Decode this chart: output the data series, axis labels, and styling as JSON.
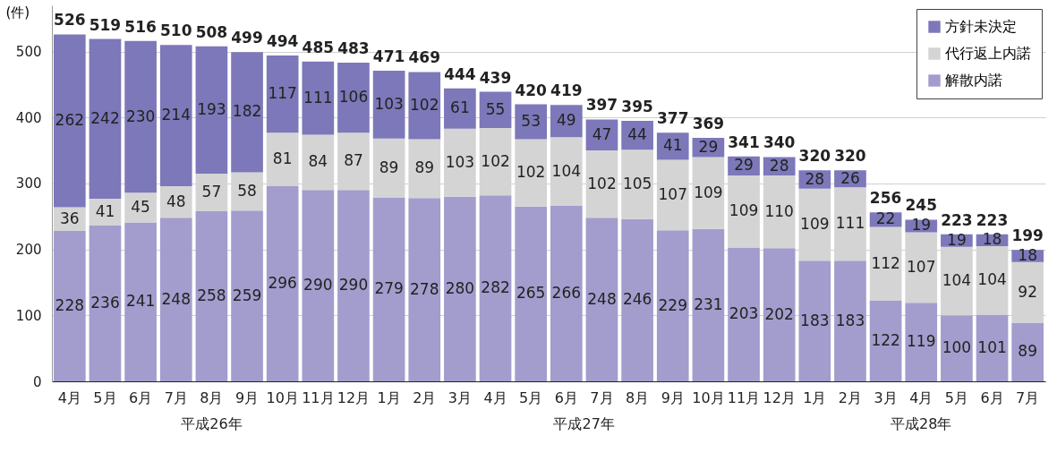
{
  "chart_data": {
    "type": "bar",
    "stacked": true,
    "ylabel": "(件)",
    "ylim": [
      0,
      570
    ],
    "yticks": [
      0,
      100,
      200,
      300,
      400,
      500
    ],
    "grid": "y",
    "legend": "top right",
    "data_labels": true,
    "categories": [
      "4月",
      "5月",
      "6月",
      "7月",
      "8月",
      "9月",
      "10月",
      "11月",
      "12月",
      "1月",
      "2月",
      "3月",
      "4月",
      "5月",
      "6月",
      "7月",
      "8月",
      "9月",
      "10月",
      "11月",
      "12月",
      "1月",
      "2月",
      "3月",
      "4月",
      "5月",
      "6月",
      "7月"
    ],
    "series": [
      {
        "name": "解散内諾",
        "color": "#a29dcd",
        "values": [
          228,
          236,
          241,
          248,
          258,
          259,
          296,
          290,
          290,
          279,
          278,
          280,
          282,
          265,
          266,
          248,
          246,
          229,
          231,
          203,
          202,
          183,
          183,
          122,
          119,
          100,
          101,
          89
        ]
      },
      {
        "name": "代行返上内諾",
        "color": "#d4d4d4",
        "values": [
          36,
          41,
          45,
          48,
          57,
          58,
          81,
          84,
          87,
          89,
          89,
          103,
          102,
          102,
          104,
          102,
          105,
          107,
          109,
          109,
          110,
          109,
          111,
          112,
          107,
          104,
          104,
          92
        ]
      },
      {
        "name": "方針未決定",
        "color": "#7c78b9",
        "values": [
          262,
          242,
          230,
          214,
          193,
          182,
          117,
          111,
          106,
          103,
          102,
          61,
          55,
          53,
          49,
          47,
          44,
          41,
          29,
          29,
          28,
          28,
          26,
          22,
          19,
          19,
          18,
          18
        ]
      }
    ],
    "totals": [
      "526",
      "519",
      "516",
      "510",
      "508",
      "499",
      "494",
      "485",
      "483",
      "471",
      "469",
      "444",
      "439",
      "420",
      "419",
      "397",
      "395",
      "377",
      "369",
      "341",
      "340",
      "320",
      "320",
      "256",
      "245",
      "223",
      "223",
      "199"
    ],
    "annotations": [
      "平成26年",
      "平成27年",
      "平成28年"
    ]
  }
}
